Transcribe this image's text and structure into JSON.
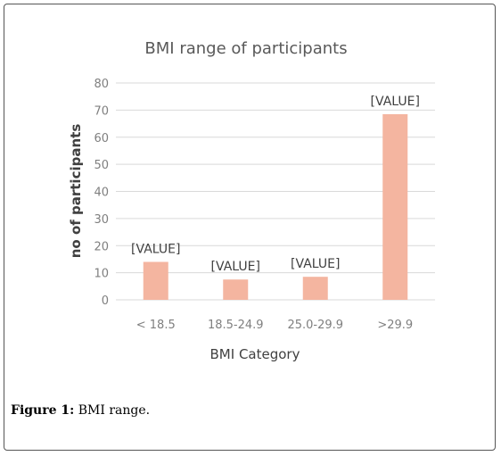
{
  "caption": {
    "label": "Figure 1:",
    "text": " BMI range."
  },
  "chart_data": {
    "type": "bar",
    "title": "BMI range of participants",
    "xlabel": "BMI Category",
    "ylabel": "no of participants",
    "categories": [
      "< 18.5",
      "18.5-24.9",
      "25.0-29.9",
      ">29.9"
    ],
    "values": [
      14,
      7.5,
      8.5,
      68.5
    ],
    "data_labels": [
      "[VALUE]",
      "[VALUE]",
      "[VALUE]",
      "[VALUE]"
    ],
    "ylim": [
      0,
      80
    ],
    "yticks": [
      0,
      10,
      20,
      30,
      40,
      50,
      60,
      70,
      80
    ],
    "grid": true,
    "bar_color": "#f4b5a0",
    "grid_color": "#d9d9d9"
  }
}
